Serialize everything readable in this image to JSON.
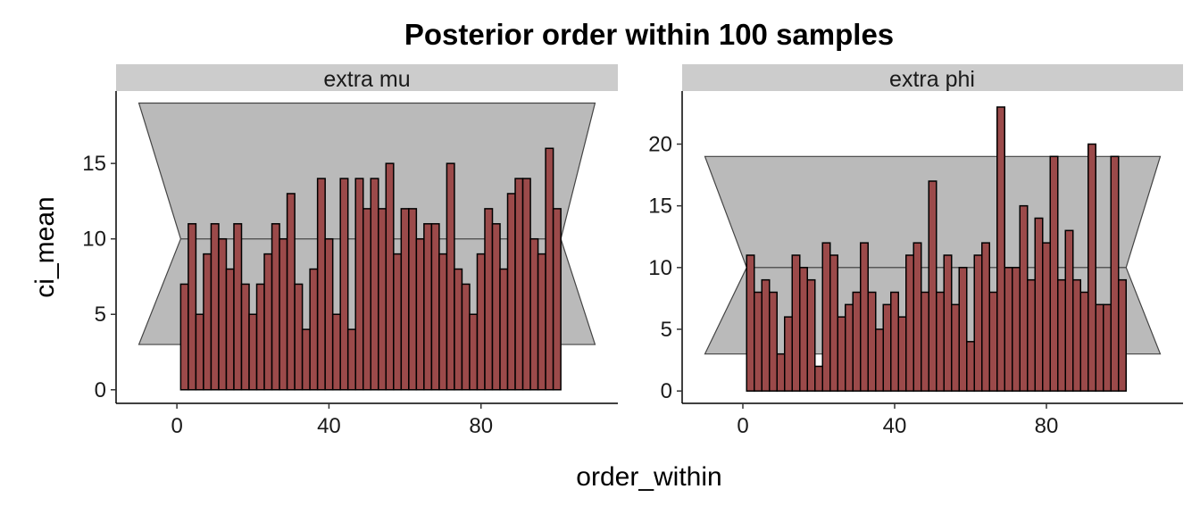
{
  "chart_data": {
    "type": "bar",
    "title": "Posterior order within 100 samples",
    "xlabel": "order_within",
    "ylabel": "ci_mean",
    "panels": [
      {
        "name": "extra_mu",
        "strip_label": "extra  mu",
        "x_ticks": [
          0,
          40,
          80
        ],
        "y_ticks": [
          0,
          5,
          10,
          15
        ],
        "xlim": [
          -16,
          116
        ],
        "ylim": [
          -0.9,
          19.8
        ],
        "band": {
          "x_min": -10,
          "x_max": 110,
          "y_low_outer": 3,
          "y_high_outer": 19,
          "y_mid": 10,
          "x_left_inner": 1,
          "x_right_inner": 101
        },
        "bin_width": 2,
        "x": [
          2,
          4,
          6,
          8,
          10,
          12,
          14,
          16,
          18,
          20,
          22,
          24,
          26,
          28,
          30,
          32,
          34,
          36,
          38,
          40,
          42,
          44,
          46,
          48,
          50,
          52,
          54,
          56,
          58,
          60,
          62,
          64,
          66,
          68,
          70,
          72,
          74,
          76,
          78,
          80,
          82,
          84,
          86,
          88,
          90,
          92,
          94,
          96,
          98,
          100
        ],
        "values": [
          7,
          11,
          5,
          9,
          11,
          10,
          8,
          11,
          7,
          5,
          7,
          9,
          11,
          10,
          13,
          7,
          4,
          8,
          14,
          10,
          5,
          14,
          4,
          14,
          12,
          14,
          12,
          15,
          9,
          12,
          12,
          10,
          11,
          11,
          9,
          15,
          8,
          7,
          5,
          9,
          12,
          11,
          8,
          13,
          14,
          14,
          10,
          9,
          16,
          12
        ]
      },
      {
        "name": "extra_phi",
        "strip_label": "extra  phi",
        "x_ticks": [
          0,
          40,
          80
        ],
        "y_ticks": [
          0,
          5,
          10,
          15,
          20
        ],
        "xlim": [
          -16,
          116
        ],
        "ylim": [
          -1.0,
          24.3
        ],
        "band": {
          "x_min": -10,
          "x_max": 110,
          "y_low_outer": 3,
          "y_high_outer": 19,
          "y_mid": 10,
          "x_left_inner": 1,
          "x_right_inner": 101
        },
        "bin_width": 2,
        "x": [
          2,
          4,
          6,
          8,
          10,
          12,
          14,
          16,
          18,
          20,
          22,
          24,
          26,
          28,
          30,
          32,
          34,
          36,
          38,
          40,
          42,
          44,
          46,
          48,
          50,
          52,
          54,
          56,
          58,
          60,
          62,
          64,
          66,
          68,
          70,
          72,
          74,
          76,
          78,
          80,
          82,
          84,
          86,
          88,
          90,
          92,
          94,
          96,
          98,
          100
        ],
        "values": [
          11,
          8,
          9,
          8,
          3,
          6,
          11,
          10,
          9,
          2,
          12,
          11,
          6,
          7,
          8,
          12,
          8,
          5,
          7,
          8,
          6,
          11,
          12,
          8,
          17,
          8,
          11,
          7,
          10,
          4,
          11,
          12,
          8,
          23,
          10,
          10,
          15,
          9,
          14,
          12,
          19,
          9,
          13,
          9,
          8,
          20,
          7,
          7,
          19,
          9
        ]
      }
    ]
  }
}
